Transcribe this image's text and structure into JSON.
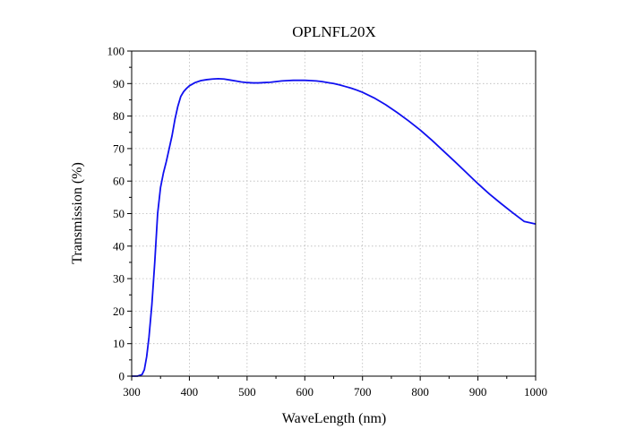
{
  "chart_data": {
    "type": "line",
    "title": "OPLNFL20X",
    "xlabel": "WaveLength (nm)",
    "ylabel": "Transmission (%)",
    "xlim": [
      300,
      1000
    ],
    "ylim": [
      0,
      100
    ],
    "xticks": [
      300,
      400,
      500,
      600,
      700,
      800,
      900,
      1000
    ],
    "yticks": [
      0,
      10,
      20,
      30,
      40,
      50,
      60,
      70,
      80,
      90,
      100
    ],
    "grid": true,
    "legend": "none",
    "series": [
      {
        "color": "#1010f0",
        "x": [
          300,
          310,
          318,
          322,
          326,
          330,
          335,
          340,
          345,
          350,
          355,
          360,
          365,
          370,
          375,
          380,
          385,
          390,
          395,
          400,
          410,
          420,
          430,
          440,
          450,
          460,
          470,
          480,
          490,
          500,
          510,
          520,
          530,
          540,
          550,
          560,
          570,
          580,
          590,
          600,
          610,
          620,
          630,
          640,
          650,
          660,
          670,
          680,
          690,
          700,
          720,
          740,
          760,
          780,
          800,
          820,
          840,
          860,
          880,
          900,
          920,
          940,
          960,
          980,
          1000
        ],
        "y": [
          0,
          0,
          0.5,
          2,
          6,
          12,
          22,
          35,
          50,
          58,
          62.5,
          66,
          70,
          74,
          79,
          83,
          86,
          87.5,
          88.5,
          89.3,
          90.3,
          90.9,
          91.2,
          91.4,
          91.5,
          91.4,
          91.1,
          90.8,
          90.5,
          90.3,
          90.2,
          90.2,
          90.3,
          90.4,
          90.6,
          90.8,
          90.9,
          91.0,
          91.0,
          91.0,
          90.9,
          90.8,
          90.6,
          90.3,
          90.0,
          89.6,
          89.1,
          88.6,
          88.0,
          87.3,
          85.6,
          83.5,
          81.1,
          78.5,
          75.7,
          72.6,
          69.3,
          66.0,
          62.6,
          59.2,
          56.0,
          53.1,
          50.3,
          47.6,
          46.8
        ]
      }
    ]
  }
}
